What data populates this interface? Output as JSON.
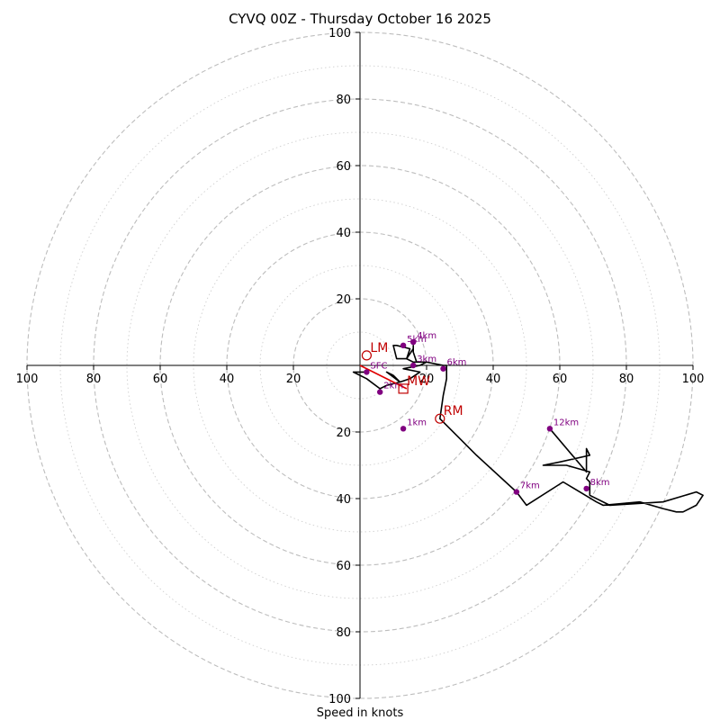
{
  "chart_data": {
    "type": "hodograph",
    "title": "CYVQ 00Z - Thursday October 16 2025",
    "xlabel": "Speed in knots",
    "speed_max": 100,
    "major_rings": [
      20,
      40,
      60,
      80,
      100
    ],
    "minor_rings": [
      10,
      30,
      50,
      70,
      90
    ],
    "tick_labels_x": [
      "100",
      "80",
      "60",
      "40",
      "20",
      "20",
      "40",
      "60",
      "80",
      "100"
    ],
    "tick_values_x": [
      -100,
      -80,
      -60,
      -40,
      -20,
      20,
      40,
      60,
      80,
      100
    ],
    "tick_labels_y": [
      "100",
      "80",
      "60",
      "40",
      "20",
      "20",
      "40",
      "60",
      "80",
      "100"
    ],
    "tick_values_y": [
      100,
      80,
      60,
      40,
      20,
      -20,
      -40,
      -60,
      -80,
      -100
    ],
    "trace": [
      [
        2,
        -2
      ],
      [
        -2,
        -2
      ],
      [
        2,
        -4
      ],
      [
        6,
        -7
      ],
      [
        8,
        -6
      ],
      [
        12,
        -5
      ],
      [
        8,
        -2
      ],
      [
        10,
        -3
      ],
      [
        12,
        -5
      ],
      [
        15,
        -4
      ],
      [
        18,
        -2
      ],
      [
        13,
        -1
      ],
      [
        18,
        0
      ],
      [
        20,
        1
      ],
      [
        16,
        1
      ],
      [
        14,
        2
      ],
      [
        15,
        5
      ],
      [
        11,
        6
      ],
      [
        10,
        6
      ],
      [
        11,
        2
      ],
      [
        14,
        2
      ],
      [
        16,
        5
      ],
      [
        16,
        6
      ],
      [
        16,
        4
      ],
      [
        17,
        1
      ],
      [
        20,
        1
      ],
      [
        25,
        0
      ],
      [
        26,
        0
      ],
      [
        26,
        -4
      ],
      [
        25,
        -9
      ],
      [
        24,
        -16
      ],
      [
        35,
        -27
      ],
      [
        47,
        -38
      ],
      [
        50,
        -42
      ],
      [
        61,
        -35
      ],
      [
        71,
        -41
      ],
      [
        73,
        -42
      ],
      [
        84,
        -41
      ],
      [
        91,
        -43
      ],
      [
        95,
        -44
      ],
      [
        97,
        -44
      ],
      [
        101,
        -42
      ],
      [
        103,
        -39
      ],
      [
        101,
        -38
      ],
      [
        91,
        -41
      ],
      [
        75,
        -42
      ],
      [
        69,
        -39
      ],
      [
        69,
        -35
      ],
      [
        68,
        -34
      ],
      [
        69,
        -32
      ],
      [
        62,
        -30
      ],
      [
        55,
        -30
      ],
      [
        60,
        -29
      ],
      [
        69,
        -27
      ],
      [
        68,
        -25
      ],
      [
        68,
        -32
      ],
      [
        57,
        -19
      ]
    ],
    "red_segment": [
      [
        0,
        0
      ],
      [
        14,
        -7
      ]
    ],
    "height_markers": [
      {
        "label": "SFC",
        "u": 2,
        "v": -2
      },
      {
        "label": "1km",
        "u": 13,
        "v": -19
      },
      {
        "label": "2km",
        "u": 6,
        "v": -8
      },
      {
        "label": "3km",
        "u": 16,
        "v": 0
      },
      {
        "label": "4km",
        "u": 16,
        "v": 7
      },
      {
        "label": "5km",
        "u": 13,
        "v": 6
      },
      {
        "label": "6km",
        "u": 25,
        "v": -1
      },
      {
        "label": "7km",
        "u": 47,
        "v": -38
      },
      {
        "label": "8km",
        "u": 68,
        "v": -37
      },
      {
        "label": "12km",
        "u": 57,
        "v": -19
      }
    ],
    "storm_motion": [
      {
        "label": "LM",
        "u": 2,
        "v": 3,
        "marker": "circle"
      },
      {
        "label": "RM",
        "u": 24,
        "v": -16,
        "marker": "circle"
      },
      {
        "label": "MW",
        "u": 13,
        "v": -7,
        "marker": "square"
      }
    ],
    "colors": {
      "trace": "#000000",
      "markers": "#800080",
      "storm_motion": "#c00000",
      "rings": "#bdbdbd"
    }
  }
}
